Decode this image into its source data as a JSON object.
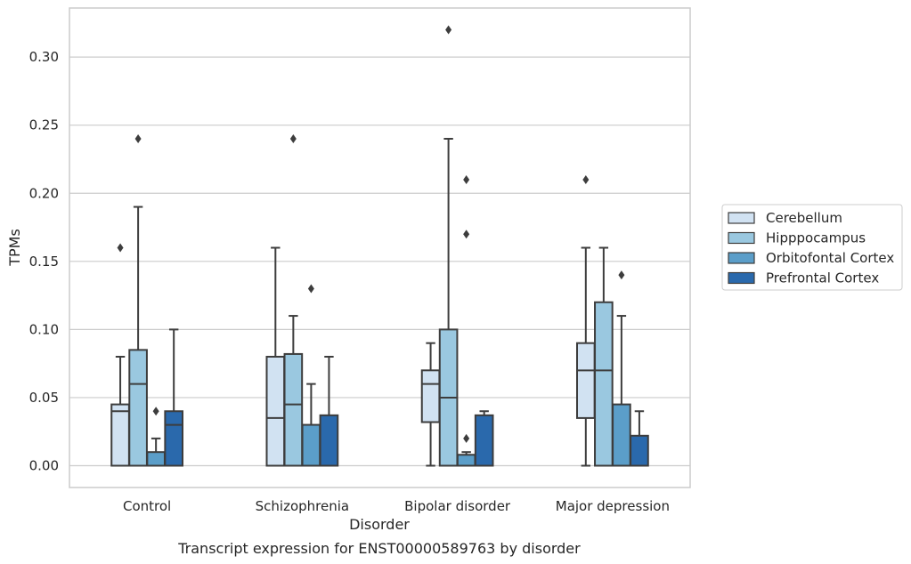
{
  "caption": "Transcript expression for ENST00000589763 by disorder",
  "chart_data": {
    "type": "box",
    "title": "",
    "xlabel": "Disorder",
    "ylabel": "TPMs",
    "ylim": [
      -0.016,
      0.336
    ],
    "yticks": [
      0.0,
      0.05,
      0.1,
      0.15,
      0.2,
      0.25,
      0.3
    ],
    "ytick_labels": [
      "0.00",
      "0.05",
      "0.10",
      "0.15",
      "0.20",
      "0.25",
      "0.30"
    ],
    "grid": "horizontal",
    "legend_position": "right",
    "categories": [
      "Control",
      "Schizophrenia",
      "Bipolar disorder",
      "Major depression"
    ],
    "series": [
      {
        "name": "Cerebellum",
        "color": "#d1e2f2",
        "boxes": [
          {
            "whislo": 0.0,
            "q1": 0.0,
            "med": 0.04,
            "q3": 0.045,
            "whishi": 0.08,
            "fliers": [
              0.16
            ]
          },
          {
            "whislo": 0.0,
            "q1": 0.0,
            "med": 0.035,
            "q3": 0.08,
            "whishi": 0.16,
            "fliers": []
          },
          {
            "whislo": 0.0,
            "q1": 0.032,
            "med": 0.06,
            "q3": 0.07,
            "whishi": 0.09,
            "fliers": []
          },
          {
            "whislo": 0.0,
            "q1": 0.035,
            "med": 0.07,
            "q3": 0.09,
            "whishi": 0.16,
            "fliers": [
              0.21
            ]
          }
        ]
      },
      {
        "name": "Hipppocampus",
        "color": "#9ac8e0",
        "boxes": [
          {
            "whislo": 0.0,
            "q1": 0.0,
            "med": 0.06,
            "q3": 0.085,
            "whishi": 0.19,
            "fliers": [
              0.24
            ]
          },
          {
            "whislo": 0.0,
            "q1": 0.0,
            "med": 0.045,
            "q3": 0.082,
            "whishi": 0.11,
            "fliers": [
              0.24
            ]
          },
          {
            "whislo": 0.0,
            "q1": 0.0,
            "med": 0.05,
            "q3": 0.1,
            "whishi": 0.24,
            "fliers": [
              0.32
            ]
          },
          {
            "whislo": 0.0,
            "q1": 0.0,
            "med": 0.07,
            "q3": 0.12,
            "whishi": 0.16,
            "fliers": []
          }
        ]
      },
      {
        "name": "Orbitofontal Cortex",
        "color": "#5b9ec9",
        "boxes": [
          {
            "whislo": 0.0,
            "q1": 0.0,
            "med": 0.0,
            "q3": 0.01,
            "whishi": 0.02,
            "fliers": [
              0.04
            ]
          },
          {
            "whislo": 0.0,
            "q1": 0.0,
            "med": 0.0,
            "q3": 0.03,
            "whishi": 0.06,
            "fliers": [
              0.13
            ]
          },
          {
            "whislo": 0.0,
            "q1": 0.0,
            "med": 0.0,
            "q3": 0.008,
            "whishi": 0.01,
            "fliers": [
              0.02,
              0.17,
              0.21
            ]
          },
          {
            "whislo": 0.0,
            "q1": 0.0,
            "med": 0.0,
            "q3": 0.045,
            "whishi": 0.11,
            "fliers": [
              0.14
            ]
          }
        ]
      },
      {
        "name": "Prefrontal Cortex",
        "color": "#2a69ac",
        "boxes": [
          {
            "whislo": 0.0,
            "q1": 0.0,
            "med": 0.03,
            "q3": 0.04,
            "whishi": 0.1,
            "fliers": []
          },
          {
            "whislo": 0.0,
            "q1": 0.0,
            "med": 0.0,
            "q3": 0.037,
            "whishi": 0.08,
            "fliers": []
          },
          {
            "whislo": 0.0,
            "q1": 0.0,
            "med": 0.0,
            "q3": 0.037,
            "whishi": 0.04,
            "fliers": []
          },
          {
            "whislo": 0.0,
            "q1": 0.0,
            "med": 0.0,
            "q3": 0.022,
            "whishi": 0.04,
            "fliers": []
          }
        ]
      }
    ]
  }
}
